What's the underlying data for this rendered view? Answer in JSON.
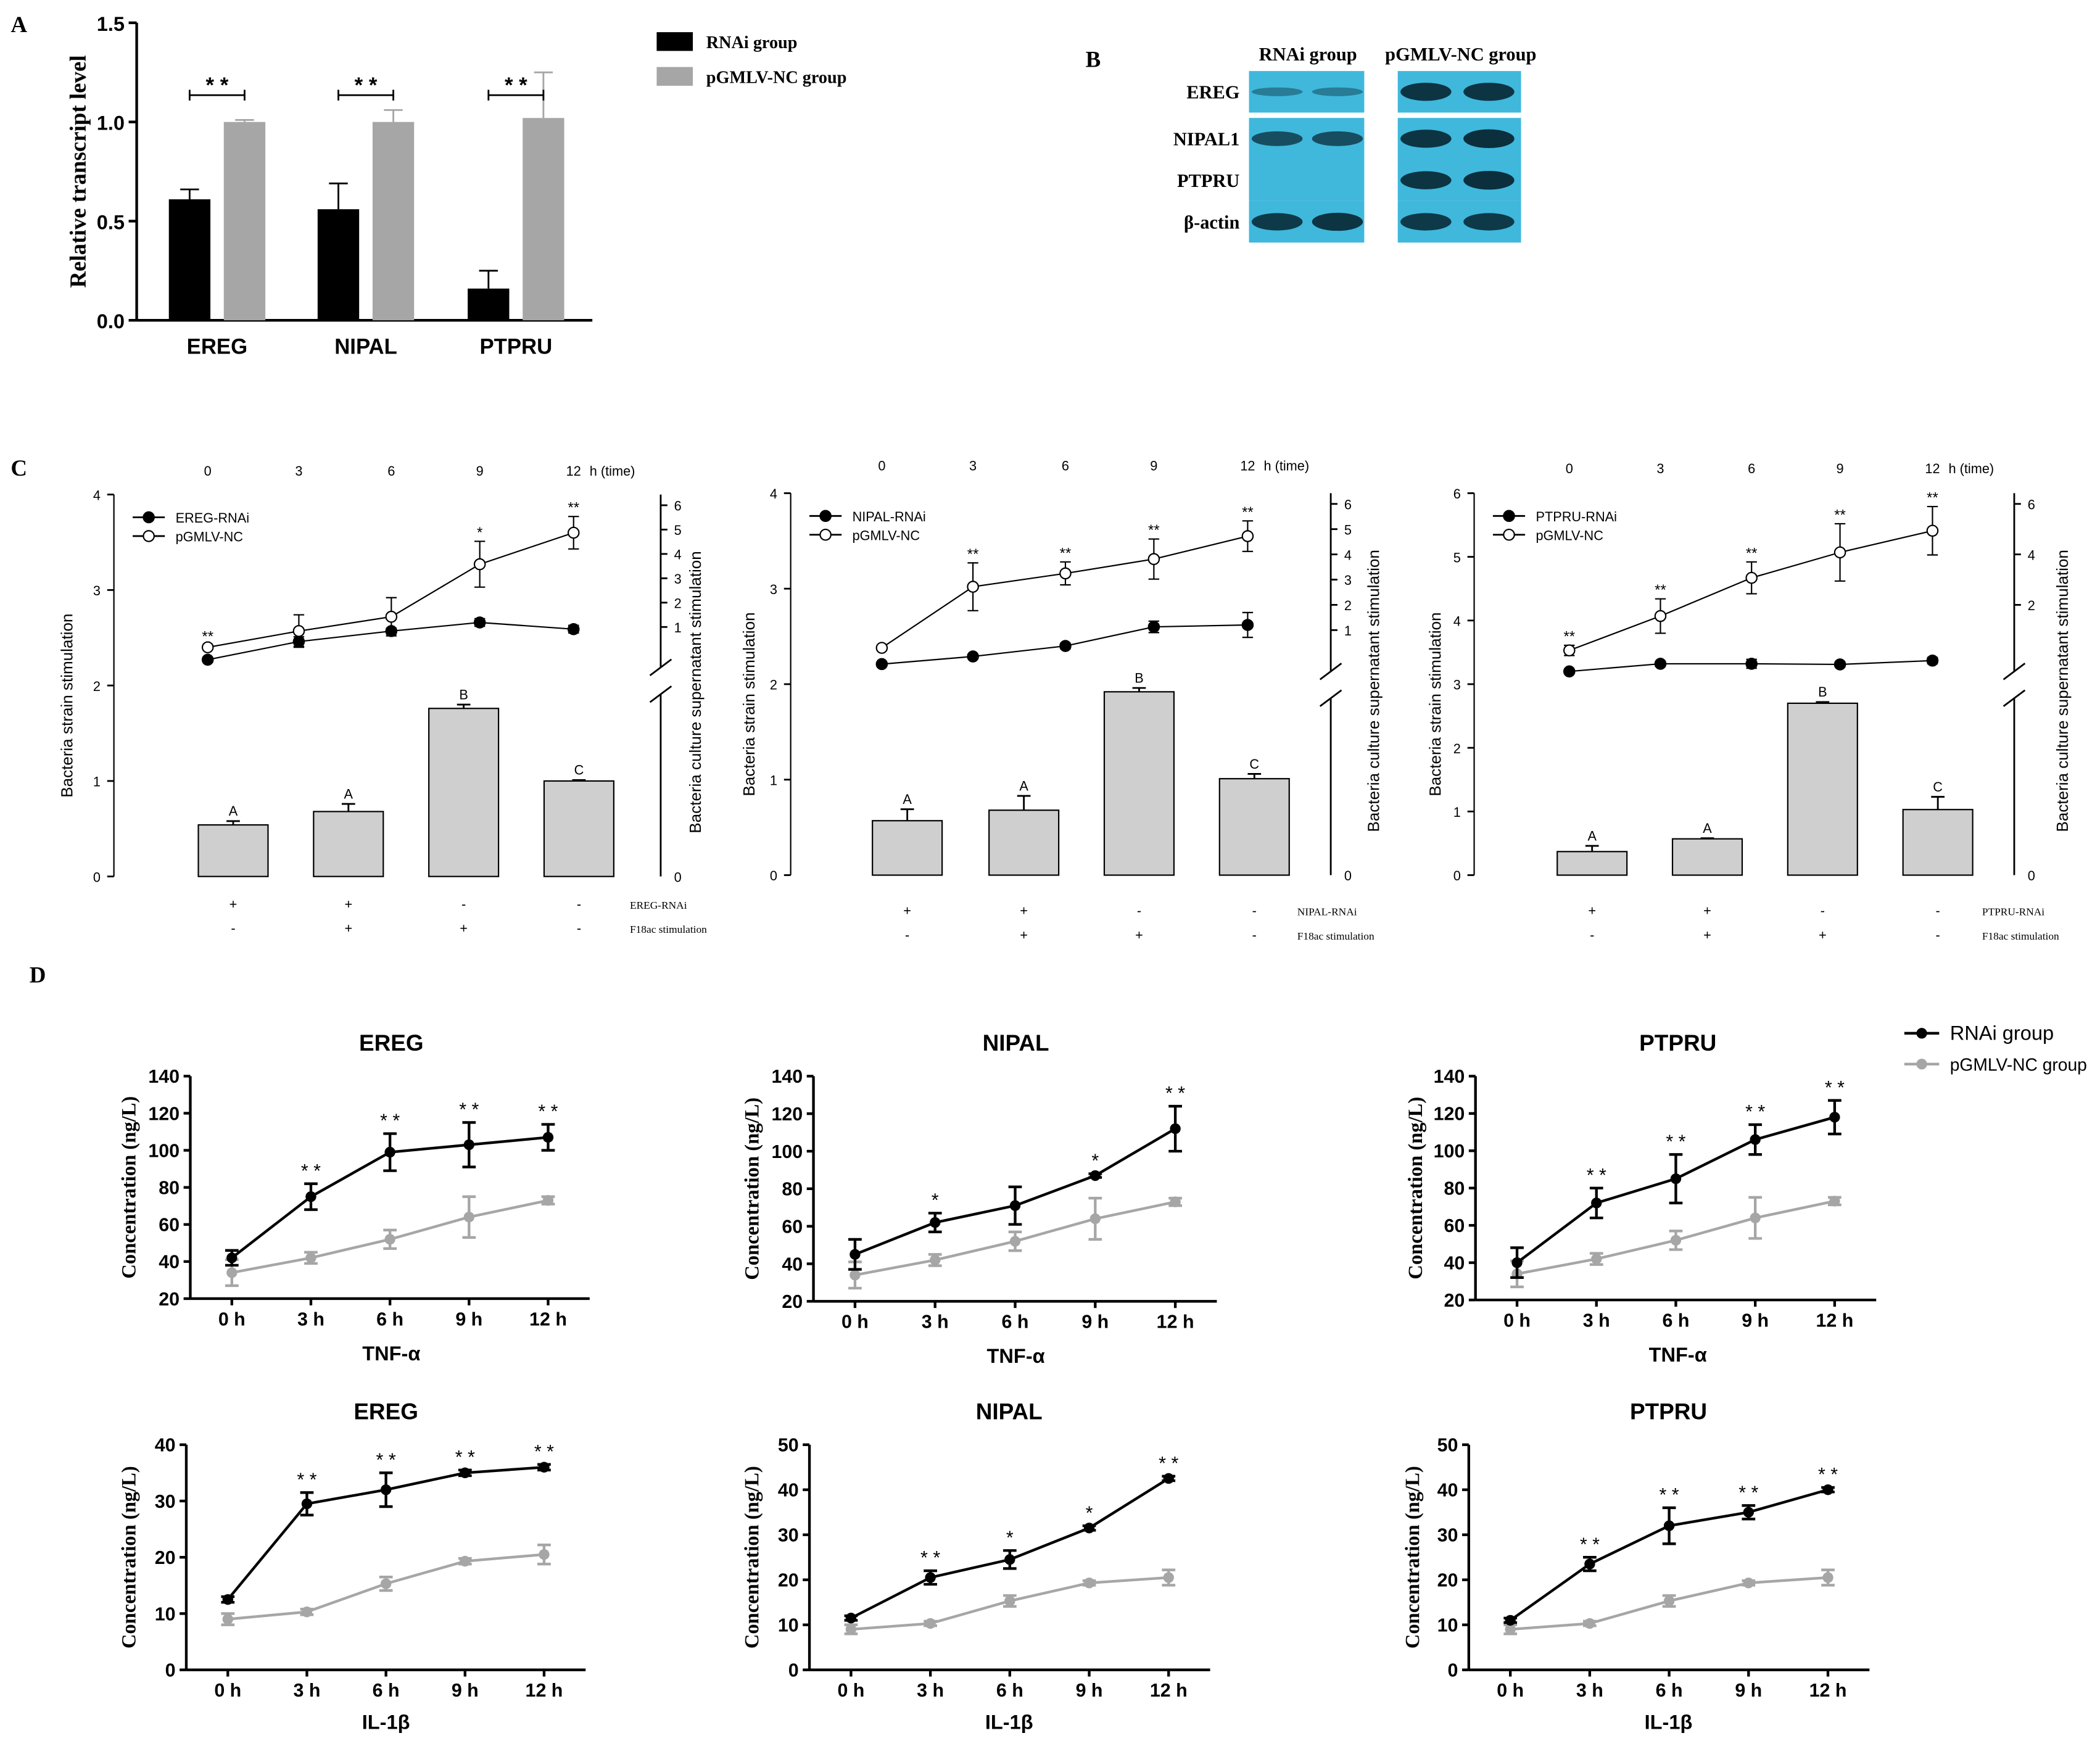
{
  "panel_labels": {
    "a": "A",
    "b": "B",
    "c": "C",
    "d": "D"
  },
  "colors": {
    "rnai": "#000000",
    "nc": "#a6a6a6",
    "bar_c": "#cfcfcf",
    "blot_bg": "#3fb8dc",
    "band": "#0b2f3c"
  },
  "chart_data": [
    {
      "id": "A",
      "type": "bar",
      "categories": [
        "EREG",
        "NIPAL",
        "PTPRU"
      ],
      "series": [
        {
          "name": "RNAi group",
          "values": [
            0.61,
            0.56,
            0.16
          ],
          "errors": [
            0.05,
            0.13,
            0.09
          ]
        },
        {
          "name": "pGMLV-NC group",
          "values": [
            1.0,
            1.0,
            1.02
          ],
          "errors": [
            0.01,
            0.06,
            0.23
          ]
        }
      ],
      "ylabel": "Relative transcript level",
      "ylim": [
        0,
        1.5
      ],
      "yticks": [
        "0.0",
        "0.5",
        "1.0",
        "1.5"
      ],
      "significance": [
        "* *",
        "* *",
        "* *"
      ]
    },
    {
      "id": "C1",
      "type": "bar+line",
      "gene": "EREG",
      "bar_values": [
        0.54,
        0.68,
        1.76,
        1.0
      ],
      "bar_errors": [
        0.04,
        0.08,
        0.04,
        0.01
      ],
      "bar_letters": [
        "A",
        "A",
        "B",
        "C"
      ],
      "left_ylabel": "Bacteria strain stimulation",
      "left_ylim": [
        0,
        4
      ],
      "left_yticks": [
        "0",
        "1",
        "2",
        "3",
        "4"
      ],
      "right_ylabel": "Bacteria culture supernatant stimulation",
      "right_ylim": [
        0,
        6
      ],
      "right_yticks": [
        "0",
        "1",
        "2",
        "3",
        "4",
        "5",
        "6"
      ],
      "time_ticks": [
        "0",
        "3",
        "6",
        "9",
        "12"
      ],
      "time_label": "h (time)",
      "rnai_line": {
        "name": "EREG-RNAi",
        "values": [
          2.27,
          2.46,
          2.57,
          2.66,
          2.59
        ],
        "errors": [
          0.02,
          0.05,
          0.03,
          0.04,
          0.04
        ]
      },
      "nc_line": {
        "name": "pGMLV-NC",
        "values": [
          2.4,
          2.57,
          2.72,
          3.27,
          3.6
        ],
        "errors": [
          0.02,
          0.17,
          0.2,
          0.24,
          0.17
        ]
      },
      "sig": [
        "**",
        "",
        "",
        "*",
        "**"
      ],
      "cond_rows": [
        [
          "+",
          "+",
          "-",
          "-"
        ],
        [
          "-",
          "+",
          "+",
          "-"
        ]
      ],
      "cond_labels": [
        "EREG-RNAi",
        "F18ac stimulation"
      ]
    },
    {
      "id": "C2",
      "type": "bar+line",
      "gene": "NIPAL",
      "bar_values": [
        0.57,
        0.68,
        1.92,
        1.01
      ],
      "bar_errors": [
        0.12,
        0.15,
        0.04,
        0.05
      ],
      "bar_letters": [
        "A",
        "A",
        "B",
        "C"
      ],
      "left_ylabel": "Bacteria strain stimulation",
      "left_ylim": [
        0,
        4
      ],
      "left_yticks": [
        "0",
        "1",
        "2",
        "3",
        "4"
      ],
      "right_ylabel": "Bacteria culture supernatant stimulation",
      "right_ylim": [
        0,
        6
      ],
      "right_yticks": [
        "0",
        "1",
        "2",
        "3",
        "4",
        "5",
        "6"
      ],
      "time_ticks": [
        "0",
        "3",
        "6",
        "9",
        "12"
      ],
      "time_label": "h (time)",
      "rnai_line": {
        "name": "NIPAL-RNAi",
        "values": [
          2.21,
          2.29,
          2.4,
          2.6,
          2.62
        ],
        "errors": [
          0.02,
          0.02,
          0.03,
          0.06,
          0.13
        ]
      },
      "nc_line": {
        "name": "pGMLV-NC",
        "values": [
          2.38,
          3.02,
          3.16,
          3.31,
          3.55
        ],
        "errors": [
          0.02,
          0.25,
          0.12,
          0.21,
          0.16
        ]
      },
      "sig": [
        "",
        "**",
        "**",
        "**",
        "**"
      ],
      "cond_rows": [
        [
          "+",
          "+",
          "-",
          "-"
        ],
        [
          "-",
          "+",
          "+",
          "-"
        ]
      ],
      "cond_labels": [
        "NIPAL-RNAi",
        "F18ac stimulation"
      ]
    },
    {
      "id": "C3",
      "type": "bar+line",
      "gene": "PTPRU",
      "bar_values": [
        0.37,
        0.57,
        2.7,
        1.03
      ],
      "bar_errors": [
        0.09,
        0.01,
        0.02,
        0.2
      ],
      "bar_letters": [
        "A",
        "A",
        "B",
        "C"
      ],
      "left_ylabel": "Bacteria strain stimulation",
      "left_ylim": [
        0,
        6
      ],
      "left_yticks": [
        "0",
        "1",
        "2",
        "3",
        "4",
        "5",
        "6"
      ],
      "right_ylabel": "Bacteria culture supernatant stimulation",
      "right_ylim": [
        0,
        6
      ],
      "right_yticks": [
        "0",
        "2",
        "4",
        "6"
      ],
      "time_ticks": [
        "0",
        "3",
        "6",
        "9",
        "12"
      ],
      "time_label": "h (time)",
      "rnai_line": {
        "name": "PTPRU-RNAi",
        "values": [
          3.2,
          3.32,
          3.32,
          3.31,
          3.37
        ],
        "errors": [
          0.02,
          0.04,
          0.07,
          0.04,
          0.05
        ]
      },
      "nc_line": {
        "name": "pGMLV-NC",
        "values": [
          3.53,
          4.07,
          4.67,
          5.07,
          5.41
        ],
        "errors": [
          0.08,
          0.27,
          0.25,
          0.45,
          0.38
        ]
      },
      "sig": [
        "**",
        "**",
        "**",
        "**",
        "**"
      ],
      "cond_rows": [
        [
          "+",
          "+",
          "-",
          "-"
        ],
        [
          "-",
          "+",
          "+",
          "-"
        ]
      ],
      "cond_labels": [
        "PTPRU-RNAi",
        "F18ac stimulation"
      ]
    },
    {
      "id": "D1",
      "type": "line",
      "title": "EREG",
      "xlabel": "TNF-α",
      "ylabel": "Concentration (ng/L)",
      "x": [
        "0 h",
        "3 h",
        "6 h",
        "9 h",
        "12 h"
      ],
      "ylim": [
        20,
        140
      ],
      "yticks": [
        "20",
        "40",
        "60",
        "80",
        "100",
        "120",
        "140"
      ],
      "series": [
        {
          "name": "RNAi group",
          "values": [
            42,
            75,
            99,
            103,
            107
          ],
          "errors": [
            4,
            7,
            10,
            12,
            7
          ]
        },
        {
          "name": "pGMLV-NC group",
          "values": [
            34,
            42,
            52,
            64,
            73
          ],
          "errors": [
            7,
            3,
            5,
            11,
            2
          ]
        }
      ],
      "sig": [
        "",
        "* *",
        "* *",
        "* *",
        "* *"
      ]
    },
    {
      "id": "D2",
      "type": "line",
      "title": "NIPAL",
      "xlabel": "TNF-α",
      "ylabel": "Concentration (ng/L)",
      "x": [
        "0 h",
        "3 h",
        "6 h",
        "9 h",
        "12 h"
      ],
      "ylim": [
        20,
        140
      ],
      "yticks": [
        "20",
        "40",
        "60",
        "80",
        "100",
        "120",
        "140"
      ],
      "series": [
        {
          "name": "RNAi group",
          "values": [
            45,
            62,
            71,
            87,
            112
          ],
          "errors": [
            8,
            5,
            10,
            1,
            12
          ]
        },
        {
          "name": "pGMLV-NC group",
          "values": [
            34,
            42,
            52,
            64,
            73
          ],
          "errors": [
            7,
            3,
            5,
            11,
            2
          ]
        }
      ],
      "sig": [
        "",
        "*",
        "",
        "*",
        "* *"
      ]
    },
    {
      "id": "D3",
      "type": "line",
      "title": "PTPRU",
      "xlabel": "TNF-α",
      "ylabel": "Concentration (ng/L)",
      "x": [
        "0 h",
        "3 h",
        "6 h",
        "9 h",
        "12 h"
      ],
      "ylim": [
        20,
        140
      ],
      "yticks": [
        "20",
        "40",
        "60",
        "80",
        "100",
        "120",
        "140"
      ],
      "series": [
        {
          "name": "RNAi group",
          "values": [
            40,
            72,
            85,
            106,
            118
          ],
          "errors": [
            8,
            8,
            13,
            8,
            9
          ]
        },
        {
          "name": "pGMLV-NC group",
          "values": [
            34,
            42,
            52,
            64,
            73
          ],
          "errors": [
            7,
            3,
            5,
            11,
            2
          ]
        }
      ],
      "sig": [
        "",
        "* *",
        "* *",
        "* *",
        "* *"
      ]
    },
    {
      "id": "D4",
      "type": "line",
      "title": "EREG",
      "xlabel": "IL-1β",
      "ylabel": "Concentration (ng/L)",
      "x": [
        "0 h",
        "3 h",
        "6 h",
        "9 h",
        "12 h"
      ],
      "ylim": [
        0,
        40
      ],
      "yticks": [
        "0",
        "10",
        "20",
        "30",
        "40"
      ],
      "series": [
        {
          "name": "RNAi group",
          "values": [
            12.5,
            29.5,
            32,
            35,
            36
          ],
          "errors": [
            0.5,
            2,
            3,
            0.5,
            0.5
          ]
        },
        {
          "name": "pGMLV-NC group",
          "values": [
            9,
            10.3,
            15.3,
            19.3,
            20.5
          ],
          "errors": [
            1,
            0.5,
            1.2,
            0.5,
            1.7
          ]
        }
      ],
      "sig": [
        "",
        "* *",
        "* *",
        "* *",
        "* *"
      ]
    },
    {
      "id": "D5",
      "type": "line",
      "title": "NIPAL",
      "xlabel": "IL-1β",
      "ylabel": "Concentration (ng/L)",
      "x": [
        "0 h",
        "3 h",
        "6 h",
        "9 h",
        "12 h"
      ],
      "ylim": [
        0,
        50
      ],
      "yticks": [
        "0",
        "10",
        "20",
        "30",
        "40",
        "50"
      ],
      "series": [
        {
          "name": "RNAi group",
          "values": [
            11.5,
            20.5,
            24.5,
            31.5,
            42.5
          ],
          "errors": [
            0.5,
            1.5,
            2,
            0.5,
            0.5
          ]
        },
        {
          "name": "pGMLV-NC group",
          "values": [
            9,
            10.3,
            15.3,
            19.3,
            20.5
          ],
          "errors": [
            1,
            0.5,
            1.2,
            0.5,
            1.7
          ]
        }
      ],
      "sig": [
        "",
        "* *",
        "*",
        "*",
        "* *"
      ]
    },
    {
      "id": "D6",
      "type": "line",
      "title": "PTPRU",
      "xlabel": "IL-1β",
      "ylabel": "Concentration (ng/L)",
      "x": [
        "0 h",
        "3 h",
        "6 h",
        "9 h",
        "12 h"
      ],
      "ylim": [
        0,
        50
      ],
      "yticks": [
        "0",
        "10",
        "20",
        "30",
        "40",
        "50"
      ],
      "series": [
        {
          "name": "RNAi group",
          "values": [
            11,
            23.5,
            32,
            35,
            40
          ],
          "errors": [
            0.5,
            1.5,
            4,
            1.5,
            0.5
          ]
        },
        {
          "name": "pGMLV-NC group",
          "values": [
            9,
            10.3,
            15.3,
            19.3,
            20.5
          ],
          "errors": [
            1,
            0.5,
            1.2,
            0.5,
            1.7
          ]
        }
      ],
      "sig": [
        "",
        "* *",
        "* *",
        "* *",
        "* *"
      ]
    }
  ],
  "legend_a": [
    "RNAi group",
    "pGMLV-NC group"
  ],
  "legend_d": [
    "RNAi group",
    "pGMLV-NC group"
  ],
  "blot": {
    "headers": [
      "RNAi group",
      "pGMLV-NC group"
    ],
    "rows": [
      {
        "label": "EREG",
        "rnai": [
          0.25,
          0.25
        ],
        "nc": [
          0.95,
          0.95
        ]
      },
      {
        "label": "NIPAL1",
        "rnai": [
          0.7,
          0.7
        ],
        "nc": [
          0.95,
          1.0
        ]
      },
      {
        "label": "PTPRU",
        "rnai": [
          0.0,
          0.0
        ],
        "nc": [
          0.95,
          1.0
        ]
      },
      {
        "label": "β-actin",
        "rnai": [
          0.9,
          0.95
        ],
        "nc": [
          0.9,
          0.9
        ]
      }
    ]
  }
}
